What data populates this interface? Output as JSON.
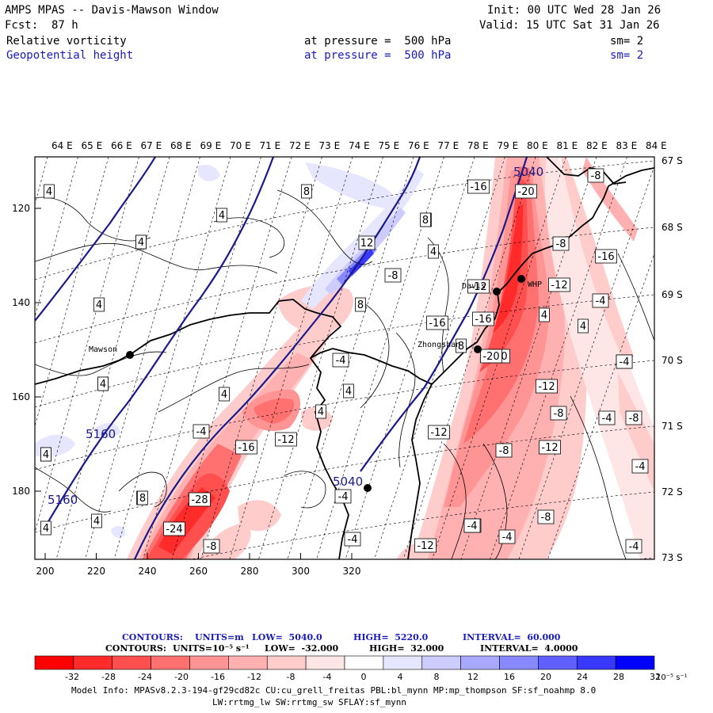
{
  "header": {
    "model": "AMPS MPAS -- Davis-Mawson Window",
    "init": "Init: 00 UTC Wed 28 Jan 26",
    "fcst": "Fcst:  87 h",
    "valid": "Valid: 15 UTC Sat 31 Jan 26",
    "field1": {
      "name": "Relative vorticity",
      "level": "at pressure =  500 hPa",
      "smooth": "sm= 2"
    },
    "field2": {
      "name": "Geopotential height",
      "level": "at pressure =  500 hPa",
      "smooth": "sm= 2"
    }
  },
  "map": {
    "lon_labels": [
      "64 E",
      "65 E",
      "66 E",
      "67 E",
      "68 E",
      "69 E",
      "70 E",
      "71 E",
      "72 E",
      "73 E",
      "74 E",
      "75 E",
      "76 E",
      "77 E",
      "78 E",
      "79 E",
      "80 E",
      "81 E",
      "82 E",
      "83 E",
      "84 E"
    ],
    "lat_labels": [
      "67 S",
      "68 S",
      "69 S",
      "70 S",
      "71 S",
      "72 S",
      "73 S"
    ],
    "x_ticks": [
      "200",
      "220",
      "240",
      "260",
      "280",
      "300",
      "320"
    ],
    "y_ticks": [
      "120",
      "140",
      "160",
      "180"
    ],
    "stations": [
      {
        "name": "Mawson",
        "symbol": "station-dot"
      },
      {
        "name": "Zhongshan",
        "symbol": "station-dot"
      },
      {
        "name": "Davis",
        "symbol": "station-dot"
      },
      {
        "name": "WHP",
        "symbol": "station-dot"
      },
      {
        "name": "",
        "symbol": "station-dot"
      }
    ],
    "height_labels": [
      "5040",
      "5160",
      "5160",
      "5040"
    ],
    "vort_labels": [
      "4",
      "8",
      "4",
      "4",
      "4",
      "8",
      "12",
      "4",
      "4",
      "8",
      "-8",
      "4",
      "4",
      "-4",
      "4",
      "4",
      "-4",
      "-16",
      "-12",
      "-28",
      "-24",
      "-8",
      "-4",
      "-4",
      "-16",
      "-20",
      "-20",
      "-16",
      "-12",
      "-12",
      "-8",
      "-4",
      "-4",
      "-12",
      "-4",
      "-8",
      "4",
      "8",
      "-8",
      "-4",
      "-4",
      "-12",
      "-8",
      "-12",
      "-4",
      "-8",
      "-4",
      "4",
      "4",
      "-16",
      "4",
      "4",
      "-4",
      "8",
      "-20",
      "4",
      "-12",
      "-16",
      "-8",
      "8",
      "4",
      "4",
      "-4"
    ]
  },
  "contour_info": {
    "line1": {
      "prefix": "CONTOURS:",
      "units": "UNITS=m",
      "low": "LOW=  5040.0",
      "high": "HIGH=  5220.0",
      "interval": "INTERVAL=  60.000"
    },
    "line2": {
      "prefix": "CONTOURS:",
      "units": "UNITS=10⁻⁵ s⁻¹",
      "low": "LOW=  -32.000",
      "high": "HIGH=  32.000",
      "interval": "INTERVAL=  4.0000"
    }
  },
  "colorbar": {
    "labels": [
      "-32",
      "-28",
      "-24",
      "-20",
      "-16",
      "-12",
      "-8",
      "-4",
      "0",
      "4",
      "8",
      "12",
      "16",
      "20",
      "24",
      "28",
      "32"
    ],
    "units": "10⁻⁵ s⁻¹",
    "colors": [
      "#ff0000",
      "#ff2a2a",
      "#ff4f4f",
      "#ff7070",
      "#ff9494",
      "#ffb0b0",
      "#ffcccc",
      "#ffe6e6",
      "#ffffff",
      "#ffffff",
      "#e6e6ff",
      "#ccccff",
      "#a8a8ff",
      "#8888ff",
      "#6060ff",
      "#3838ff",
      "#0000ff"
    ]
  },
  "model_info": {
    "line1": "Model Info: MPASv8.2.3-194-gf29cd82c CU:cu_grell_freitas PBL:bl_mynn MP:mp_thompson SF:sf_noahmp 8.0",
    "line2": "LW:rrtmg_lw SW:rrtmg_sw SFLAY:sf_mynn"
  }
}
